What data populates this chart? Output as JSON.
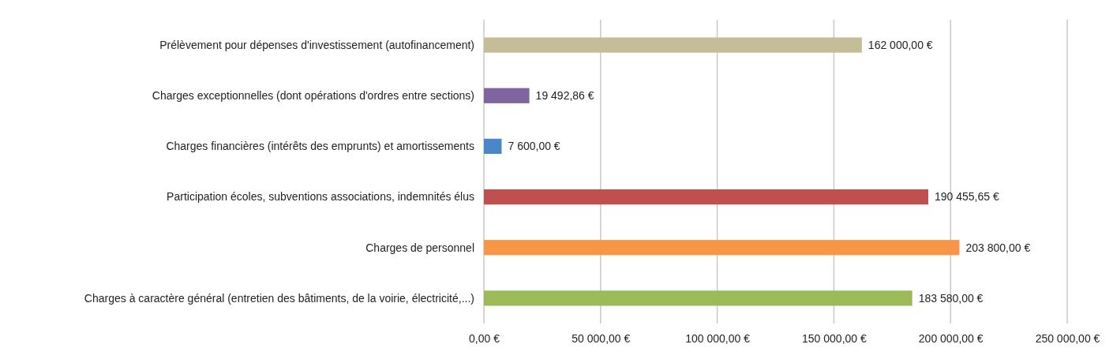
{
  "chart_data": {
    "type": "bar",
    "orientation": "horizontal",
    "categories": [
      "Prélèvement pour dépenses d'investissement (autofinancement)",
      "Charges exceptionnelles (dont opérations d'ordres entre sections)",
      "Charges financières (intérêts des emprunts) et amortissements",
      "Participation écoles, subventions associations, indemnités élus",
      "Charges de personnel",
      "Charges à caractère général (entretien des bâtiments, de la voirie, électricité,...)"
    ],
    "values": [
      162000,
      19492.86,
      7600,
      190455.65,
      203800,
      183580
    ],
    "colors": [
      "#c4bd97",
      "#8064a2",
      "#4a86c8",
      "#c0504d",
      "#f79646",
      "#9bbb59"
    ],
    "value_labels": [
      "162 000,00 €",
      "19 492,86 €",
      "7 600,00 €",
      "190 455,65 €",
      "203 800,00 €",
      "183 580,00 €"
    ],
    "xlim": [
      0,
      250000
    ],
    "xticks": [
      {
        "value": 0,
        "label": "0,00 €"
      },
      {
        "value": 50000,
        "label": "50 000,00 €"
      },
      {
        "value": 100000,
        "label": "100 000,00 €"
      },
      {
        "value": 150000,
        "label": "150 000,00 €"
      },
      {
        "value": 200000,
        "label": "200 000,00 €"
      },
      {
        "value": 250000,
        "label": "250 000,00 €"
      }
    ],
    "grid": "x"
  }
}
